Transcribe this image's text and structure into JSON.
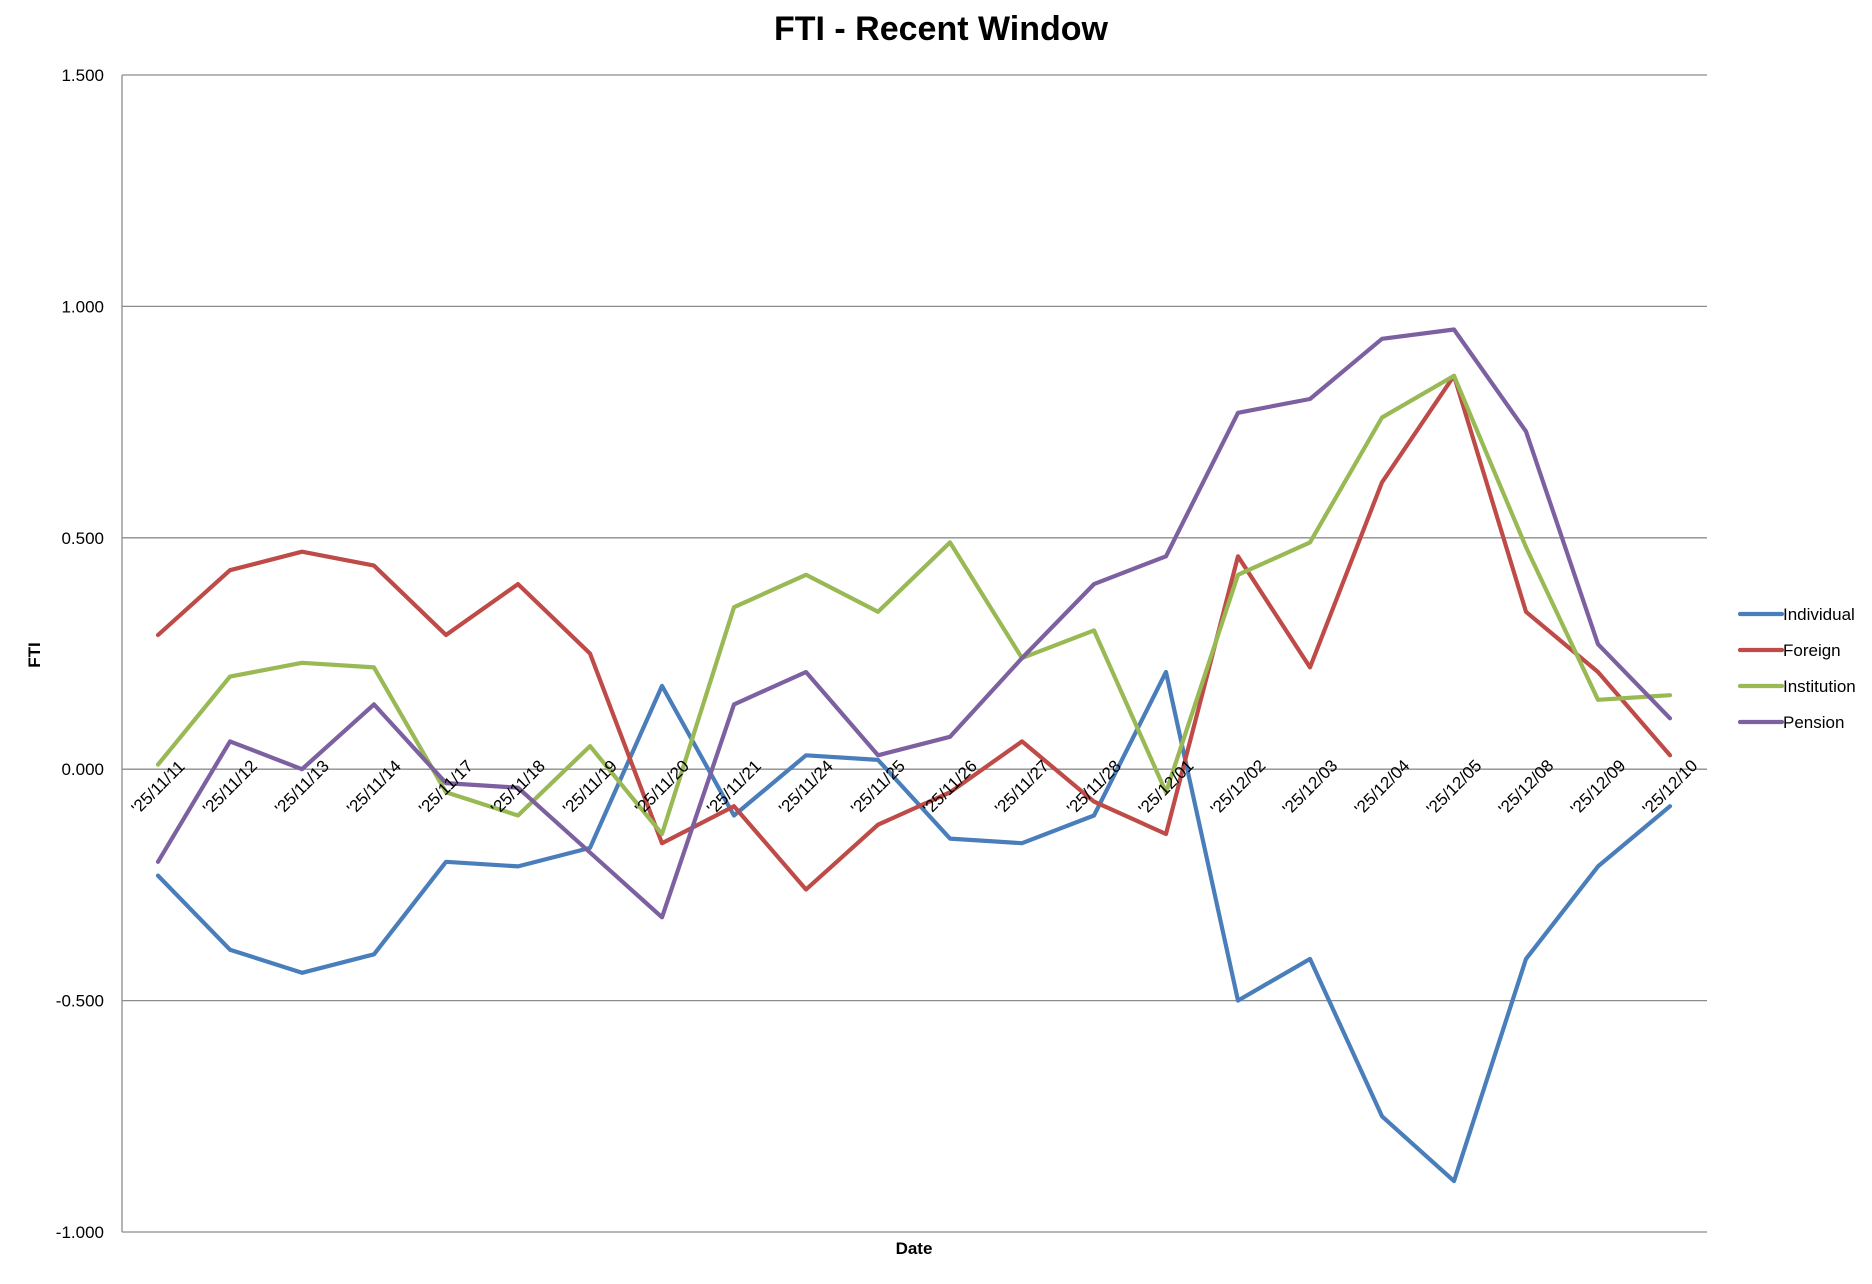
{
  "chart_data": {
    "type": "line",
    "title": "FTI - Recent Window",
    "xlabel": "Date",
    "ylabel": "FTI",
    "ylim": [
      -1.0,
      1.5
    ],
    "yticks": [
      -1.0,
      -0.5,
      0.0,
      0.5,
      1.0,
      1.5
    ],
    "ytick_labels": [
      "-1.000",
      "-0.500",
      "0.000",
      "0.500",
      "1.000",
      "1.500"
    ],
    "grid": true,
    "legend_position": "right",
    "categories": [
      "'25/11/11",
      "'25/11/12",
      "'25/11/13",
      "'25/11/14",
      "'25/11/17",
      "'25/11/18",
      "'25/11/19",
      "'25/11/20",
      "'25/11/21",
      "'25/11/24",
      "'25/11/25",
      "'25/11/26",
      "'25/11/27",
      "'25/11/28",
      "'25/12/01",
      "'25/12/02",
      "'25/12/03",
      "'25/12/04",
      "'25/12/05",
      "'25/12/08",
      "'25/12/09",
      "'25/12/10"
    ],
    "series": [
      {
        "name": "Individual",
        "color": "#4a7ebb",
        "values": [
          -0.23,
          -0.39,
          -0.44,
          -0.4,
          -0.2,
          -0.21,
          -0.17,
          0.18,
          -0.1,
          0.03,
          0.02,
          -0.15,
          -0.16,
          -0.1,
          0.21,
          -0.5,
          -0.41,
          -0.75,
          -0.89,
          -0.41,
          -0.21,
          -0.08
        ]
      },
      {
        "name": "Foreign",
        "color": "#be4b48",
        "values": [
          0.29,
          0.43,
          0.47,
          0.44,
          0.29,
          0.4,
          0.25,
          -0.16,
          -0.08,
          -0.26,
          -0.12,
          -0.05,
          0.06,
          -0.07,
          -0.14,
          0.46,
          0.22,
          0.62,
          0.85,
          0.34,
          0.21,
          0.03
        ]
      },
      {
        "name": "Institution",
        "color": "#98b954",
        "values": [
          0.01,
          0.2,
          0.23,
          0.22,
          -0.05,
          -0.1,
          0.05,
          -0.14,
          0.35,
          0.42,
          0.34,
          0.49,
          0.24,
          0.3,
          -0.05,
          0.42,
          0.49,
          0.76,
          0.85,
          0.48,
          0.15,
          0.16
        ]
      },
      {
        "name": "Pension",
        "color": "#7d60a0",
        "values": [
          -0.2,
          0.06,
          0.0,
          0.14,
          -0.03,
          -0.04,
          -0.18,
          -0.32,
          0.14,
          0.21,
          0.03,
          0.07,
          0.24,
          0.4,
          0.46,
          0.77,
          0.8,
          0.93,
          0.95,
          0.73,
          0.27,
          0.11
        ]
      }
    ]
  }
}
